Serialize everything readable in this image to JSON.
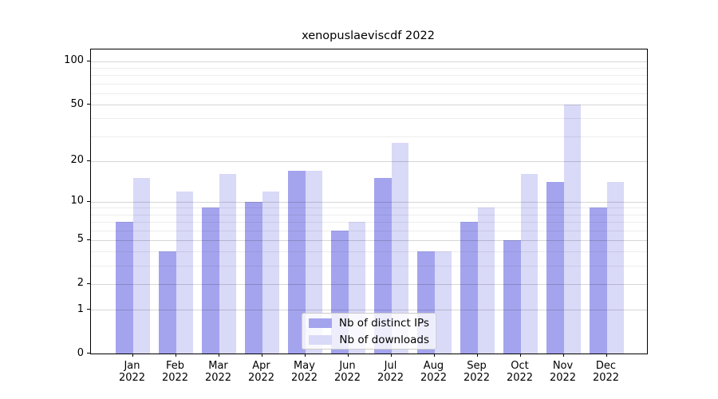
{
  "chart_data": {
    "type": "bar",
    "title": "xenopuslaeviscdf 2022",
    "categories": [
      "Jan",
      "Feb",
      "Mar",
      "Apr",
      "May",
      "Jun",
      "Jul",
      "Aug",
      "Sep",
      "Oct",
      "Nov",
      "Dec"
    ],
    "category_year": "2022",
    "series": [
      {
        "name": "Nb of distinct IPs",
        "color": "#a4a4ee",
        "values": [
          7,
          4,
          9,
          10,
          17,
          6,
          15,
          4,
          7,
          5,
          14,
          9
        ]
      },
      {
        "name": "Nb of downloads",
        "color": "#d9d9f8",
        "values": [
          15,
          12,
          16,
          12,
          17,
          7,
          27,
          4,
          9,
          16,
          50,
          14
        ]
      }
    ],
    "xlabel": "",
    "ylabel": "",
    "y_scale": "log1p",
    "ylim": [
      0,
      121
    ],
    "y_major_ticks": [
      0,
      1,
      2,
      5,
      10,
      20,
      50,
      100
    ],
    "y_major_tick_labels": [
      "0",
      "1",
      "2",
      "5",
      "10",
      "20",
      "50",
      "100"
    ],
    "y_minor_gridlines": [
      3,
      4,
      6,
      7,
      8,
      9,
      30,
      40,
      60,
      70,
      80,
      90
    ],
    "grid": "horizontal",
    "legend_position": "lower center inside"
  }
}
